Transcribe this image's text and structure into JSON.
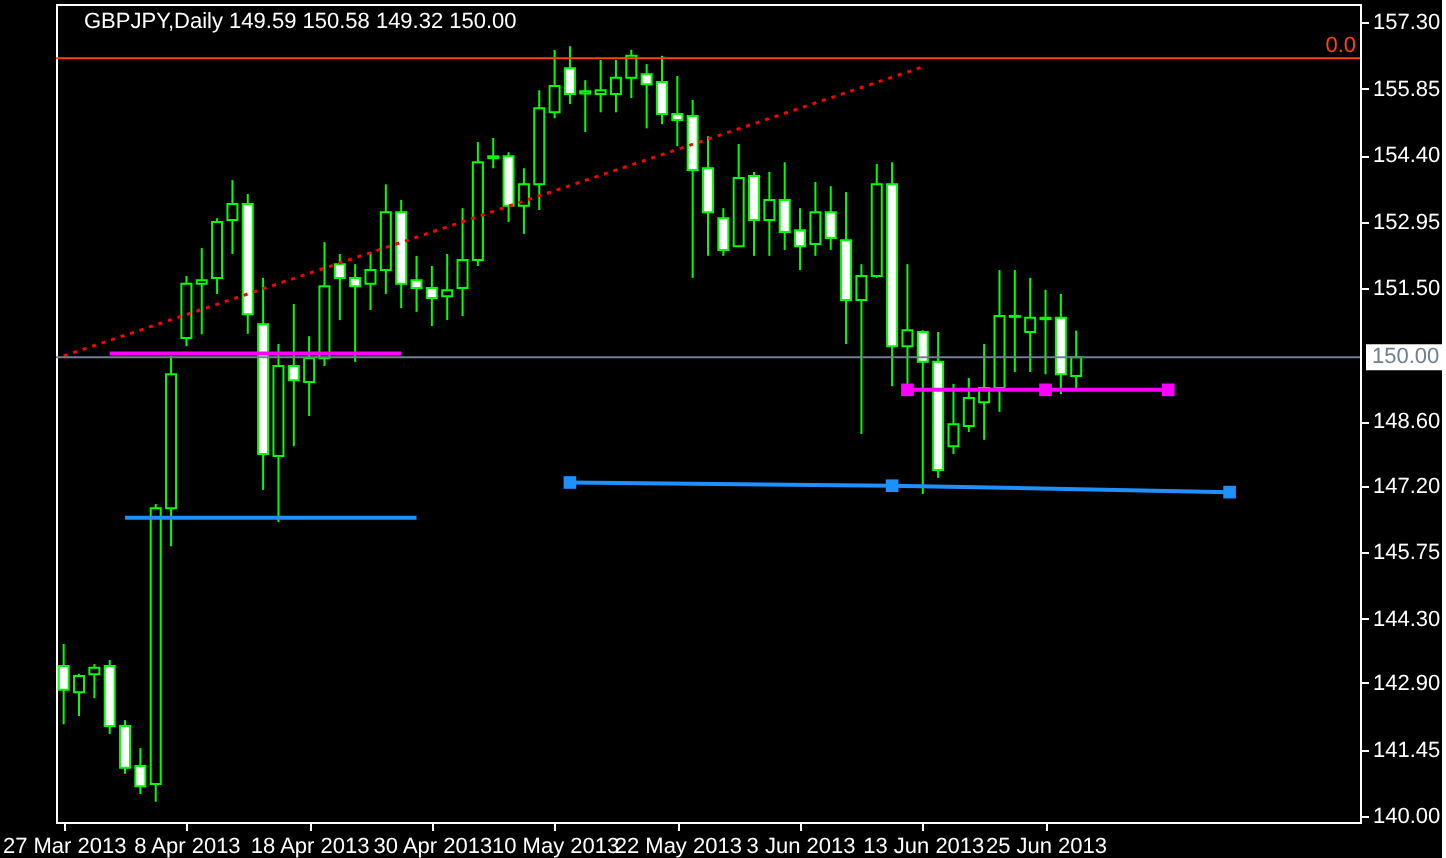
{
  "chart_data": {
    "type": "candlestick",
    "title": "GBPJPY,Daily  149.59 150.58 149.32 150.00",
    "color": "#00ff00",
    "categories": [
      "27 Mar 2013",
      null,
      null,
      null,
      null,
      null,
      null,
      null,
      "8 Apr 2013",
      null,
      null,
      null,
      null,
      null,
      null,
      null,
      "18 Apr 2013",
      null,
      null,
      null,
      null,
      null,
      null,
      null,
      "30 Apr 2013",
      null,
      null,
      null,
      null,
      null,
      null,
      null,
      "10 May 2013",
      null,
      null,
      null,
      null,
      null,
      null,
      null,
      "22 May 2013",
      null,
      null,
      null,
      null,
      null,
      null,
      null,
      "3 Jun 2013",
      null,
      null,
      null,
      null,
      null,
      null,
      null,
      "13 Jun 2013",
      null,
      null,
      null,
      null,
      null,
      null,
      null,
      "25 Jun 2013",
      null,
      null,
      null,
      null,
      null,
      null,
      null,
      null,
      null,
      null,
      null,
      null,
      null,
      null,
      null,
      null,
      null,
      null,
      null,
      null
    ],
    "ohlc": [
      [
        143.27,
        143.75,
        142.0,
        142.75
      ],
      [
        142.7,
        143.1,
        142.18,
        143.05
      ],
      [
        143.09,
        143.31,
        142.57,
        143.23
      ],
      [
        143.27,
        143.4,
        141.79,
        141.96
      ],
      [
        141.96,
        142.09,
        140.92,
        141.05
      ],
      [
        141.09,
        141.48,
        140.48,
        140.65
      ],
      [
        140.7,
        146.8,
        140.31,
        146.71
      ],
      [
        146.71,
        150.03,
        145.88,
        149.63
      ],
      [
        150.42,
        151.77,
        150.24,
        151.6
      ],
      [
        151.6,
        152.38,
        150.5,
        151.68
      ],
      [
        151.73,
        153.03,
        151.38,
        152.95
      ],
      [
        152.99,
        153.86,
        152.25,
        153.34
      ],
      [
        153.34,
        153.56,
        150.51,
        150.94
      ],
      [
        150.72,
        151.73,
        147.11,
        147.89
      ],
      [
        147.85,
        150.29,
        146.41,
        149.81
      ],
      [
        149.81,
        151.16,
        148.06,
        149.5
      ],
      [
        149.46,
        150.46,
        148.72,
        149.98
      ],
      [
        149.98,
        152.51,
        149.81,
        151.55
      ],
      [
        152.03,
        152.25,
        150.81,
        151.73
      ],
      [
        151.73,
        152.03,
        149.9,
        151.55
      ],
      [
        151.6,
        152.29,
        151.03,
        151.9
      ],
      [
        151.9,
        153.77,
        151.38,
        153.16
      ],
      [
        153.16,
        153.43,
        151.07,
        151.6
      ],
      [
        151.68,
        152.21,
        150.99,
        151.51
      ],
      [
        151.51,
        151.99,
        150.68,
        151.29
      ],
      [
        151.33,
        152.25,
        150.81,
        151.46
      ],
      [
        151.51,
        153.25,
        150.9,
        152.12
      ],
      [
        152.12,
        154.69,
        151.99,
        154.25
      ],
      [
        154.34,
        154.78,
        154.12,
        154.38
      ],
      [
        154.38,
        154.47,
        152.95,
        153.3
      ],
      [
        153.3,
        154.12,
        152.69,
        153.77
      ],
      [
        153.77,
        155.82,
        153.21,
        155.43
      ],
      [
        155.34,
        156.7,
        155.21,
        155.91
      ],
      [
        156.3,
        156.78,
        155.52,
        155.74
      ],
      [
        155.75,
        156.04,
        154.91,
        155.8
      ],
      [
        155.74,
        156.48,
        155.34,
        155.82
      ],
      [
        155.74,
        156.48,
        155.34,
        156.09
      ],
      [
        156.09,
        156.7,
        155.65,
        156.57
      ],
      [
        156.17,
        156.39,
        154.99,
        155.95
      ],
      [
        156.0,
        156.57,
        155.08,
        155.3
      ],
      [
        155.3,
        156.13,
        154.6,
        155.17
      ],
      [
        155.26,
        155.61,
        151.73,
        154.08
      ],
      [
        154.12,
        154.82,
        152.21,
        153.16
      ],
      [
        153.03,
        153.25,
        152.21,
        152.34
      ],
      [
        152.42,
        154.65,
        152.42,
        153.91
      ],
      [
        153.95,
        154.04,
        152.21,
        152.99
      ],
      [
        152.99,
        154.04,
        152.21,
        153.43
      ],
      [
        153.43,
        154.25,
        152.34,
        152.73
      ],
      [
        152.77,
        153.25,
        151.9,
        152.42
      ],
      [
        152.47,
        153.82,
        152.21,
        153.16
      ],
      [
        153.16,
        153.73,
        152.34,
        152.6
      ],
      [
        152.55,
        153.6,
        150.29,
        151.25
      ],
      [
        151.25,
        152.03,
        148.33,
        151.77
      ],
      [
        151.77,
        154.21,
        151.73,
        153.77
      ],
      [
        153.77,
        154.25,
        149.37,
        150.24
      ],
      [
        150.24,
        152.03,
        149.37,
        150.59
      ],
      [
        150.55,
        150.59,
        147.02,
        149.9
      ],
      [
        149.9,
        150.55,
        147.37,
        147.54
      ],
      [
        148.06,
        149.42,
        147.89,
        148.54
      ],
      [
        148.5,
        149.55,
        148.37,
        149.11
      ],
      [
        149.02,
        150.29,
        148.2,
        149.33
      ],
      [
        149.33,
        151.9,
        148.81,
        150.9
      ],
      [
        150.88,
        151.9,
        149.68,
        150.9
      ],
      [
        150.55,
        151.73,
        149.68,
        150.86
      ],
      [
        150.83,
        151.47,
        149.63,
        150.86
      ],
      [
        150.86,
        151.38,
        149.2,
        149.63
      ],
      [
        149.59,
        150.58,
        149.32,
        150.0
      ],
      null,
      null,
      null,
      null,
      null,
      null,
      null,
      null,
      null,
      null,
      null,
      null,
      null,
      null,
      null,
      null,
      null,
      null
    ],
    "ylim": [
      139.87,
      157.7
    ],
    "yticks": [
      {
        "value": 140,
        "label": "140.00"
      },
      {
        "value": 141.45,
        "label": "141.45"
      },
      {
        "value": 142.9,
        "label": "142.90"
      },
      {
        "value": 144.3,
        "label": "144.30"
      },
      {
        "value": 145.75,
        "label": "145.75"
      },
      {
        "value": 147.2,
        "label": "147.20"
      },
      {
        "value": 148.6,
        "label": "148.60"
      },
      {
        "value": 151.5,
        "label": "151.50"
      },
      {
        "value": 152.95,
        "label": "152.95"
      },
      {
        "value": 154.4,
        "label": "154.40"
      },
      {
        "value": 155.85,
        "label": "155.85"
      },
      {
        "value": 157.3,
        "label": "157.30"
      }
    ],
    "series": [
      {
        "type": "line",
        "color": "#ff0000",
        "line_style": "dotted",
        "marker": "none",
        "values": [
          150.03,
          null,
          null,
          null,
          null,
          null,
          null,
          null,
          null,
          null,
          null,
          null,
          null,
          null,
          null,
          null,
          null,
          null,
          null,
          null,
          null,
          null,
          null,
          null,
          null,
          null,
          null,
          null,
          null,
          null,
          null,
          null,
          null,
          null,
          null,
          null,
          null,
          null,
          null,
          null,
          null,
          null,
          null,
          null,
          null,
          null,
          null,
          null,
          null,
          null,
          null,
          null,
          null,
          null,
          null,
          null,
          156.33,
          null,
          null,
          null,
          null,
          null,
          null,
          null,
          null,
          null,
          null,
          null,
          null,
          null,
          null,
          null,
          null,
          null,
          null,
          null,
          null,
          null,
          null,
          null,
          null,
          null,
          null,
          null,
          null
        ]
      },
      {
        "type": "line",
        "color": "#ff00ff",
        "line_style": "solid",
        "marker": "none",
        "values": [
          null,
          null,
          null,
          150.08,
          null,
          null,
          null,
          null,
          null,
          null,
          null,
          null,
          null,
          null,
          null,
          null,
          null,
          null,
          null,
          null,
          null,
          null,
          150.08,
          null,
          null,
          null,
          null,
          null,
          null,
          null,
          null,
          null,
          null,
          null,
          null,
          null,
          null,
          null,
          null,
          null,
          null,
          null,
          null,
          null,
          null,
          null,
          null,
          null,
          null,
          null,
          null,
          null,
          null,
          null,
          null,
          null,
          null,
          null,
          null,
          null,
          null,
          null,
          null,
          null,
          null,
          null,
          null,
          null,
          null,
          null,
          null,
          null,
          null,
          null,
          null,
          null,
          null,
          null,
          null,
          null,
          null,
          null,
          null,
          null,
          null
        ]
      },
      {
        "type": "line",
        "color": "#ff00ff",
        "line_style": "solid",
        "marker": "square",
        "values": [
          null,
          null,
          null,
          null,
          null,
          null,
          null,
          null,
          null,
          null,
          null,
          null,
          null,
          null,
          null,
          null,
          null,
          null,
          null,
          null,
          null,
          null,
          null,
          null,
          null,
          null,
          null,
          null,
          null,
          null,
          null,
          null,
          null,
          null,
          null,
          null,
          null,
          null,
          null,
          null,
          null,
          null,
          null,
          null,
          null,
          null,
          null,
          null,
          null,
          null,
          null,
          null,
          null,
          null,
          null,
          149.29,
          null,
          null,
          null,
          null,
          null,
          null,
          null,
          null,
          149.29,
          null,
          null,
          null,
          null,
          null,
          null,
          null,
          149.29,
          null,
          null,
          null,
          null,
          null,
          null,
          null,
          null,
          null,
          null,
          null,
          null
        ]
      },
      {
        "type": "line",
        "color": "#1e90ff",
        "line_style": "solid",
        "marker": "none",
        "values": [
          null,
          null,
          null,
          null,
          146.5,
          null,
          null,
          null,
          null,
          null,
          null,
          null,
          null,
          null,
          null,
          null,
          null,
          null,
          null,
          null,
          null,
          null,
          null,
          146.5,
          null,
          null,
          null,
          null,
          null,
          null,
          null,
          null,
          null,
          null,
          null,
          null,
          null,
          null,
          null,
          null,
          null,
          null,
          null,
          null,
          null,
          null,
          null,
          null,
          null,
          null,
          null,
          null,
          null,
          null,
          null,
          null,
          null,
          null,
          null,
          null,
          null,
          null,
          null,
          null,
          null,
          null,
          null,
          null,
          null,
          null,
          null,
          null,
          null,
          null,
          null,
          null,
          null,
          null,
          null,
          null,
          null,
          null,
          null,
          null,
          null
        ]
      },
      {
        "type": "line",
        "color": "#1e90ff",
        "line_style": "solid",
        "marker": "square",
        "values": [
          null,
          null,
          null,
          null,
          null,
          null,
          null,
          null,
          null,
          null,
          null,
          null,
          null,
          null,
          null,
          null,
          null,
          null,
          null,
          null,
          null,
          null,
          null,
          null,
          null,
          null,
          null,
          null,
          null,
          null,
          null,
          null,
          null,
          147.27,
          null,
          null,
          null,
          null,
          null,
          null,
          null,
          null,
          null,
          null,
          null,
          null,
          null,
          null,
          null,
          null,
          null,
          null,
          null,
          null,
          147.2,
          null,
          null,
          null,
          null,
          null,
          null,
          null,
          null,
          null,
          null,
          null,
          null,
          null,
          null,
          null,
          null,
          null,
          null,
          null,
          null,
          null,
          147.06,
          null,
          null,
          null,
          null,
          null,
          null,
          null,
          null
        ]
      }
    ],
    "ref_lines": [
      {
        "axis": "y",
        "value": 156.52,
        "color": "#ff4500"
      },
      {
        "axis": "y",
        "value": 150.0,
        "label": "150.00",
        "color": "#708090"
      }
    ],
    "annotations": [
      {
        "text": "0.0",
        "y": 156.52
      }
    ],
    "grid": false
  }
}
